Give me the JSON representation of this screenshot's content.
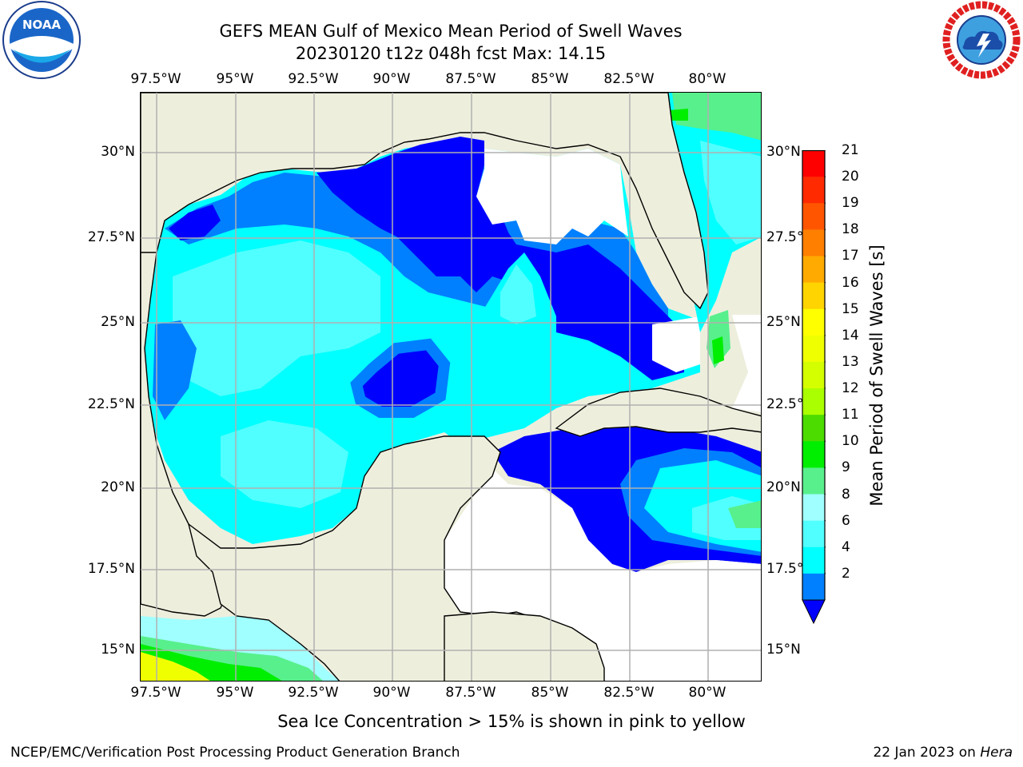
{
  "header": {
    "title_line1": "GEFS MEAN Gulf of Mexico Mean Period of Swell Waves",
    "title_line2": "20230120 t12z 048h fcst   Max: 14.15"
  },
  "logos": {
    "noaa": {
      "icon": "noaa-logo",
      "text": "NOAA",
      "ring_text": "NATIONAL OCEANIC AND ATMOSPHERIC ADMINISTRATION · U.S. DEPARTMENT OF COMMERCE"
    },
    "nws": {
      "icon": "nws-logo",
      "ring_text": "NATIONAL WEATHER SERVICE"
    }
  },
  "axes": {
    "lon_ticks": [
      "97.5°W",
      "95°W",
      "92.5°W",
      "90°W",
      "87.5°W",
      "85°W",
      "82.5°W",
      "80°W"
    ],
    "lat_ticks_left": [
      "30°N",
      "27.5°N",
      "25°N",
      "22.5°N",
      "20°N",
      "17.5°N",
      "15°N"
    ],
    "lat_ticks_right": [
      "30°N",
      "27.5°",
      "25°N",
      "22.5°",
      "20°N",
      "17.5°",
      "15°N"
    ]
  },
  "colorbar": {
    "label": "Mean Period of Swell Waves [s]",
    "ticks": [
      "21",
      "20",
      "19",
      "18",
      "17",
      "16",
      "15",
      "14",
      "13",
      "12",
      "11",
      "10",
      "9",
      "8",
      "6",
      "4",
      "2"
    ],
    "colors": [
      "#ff0000",
      "#ff2a00",
      "#ff5500",
      "#ff7f00",
      "#ffaa00",
      "#ffd400",
      "#ffff00",
      "#f0ff00",
      "#d4ff00",
      "#aaff00",
      "#4cdc00",
      "#00ee00",
      "#58f08c",
      "#a0ffff",
      "#50ffff",
      "#00ffff",
      "#0080ff"
    ],
    "arrow_color": "#0000ff"
  },
  "caption": "Sea Ice Concentration > 15% is shown in pink to yellow",
  "footer": {
    "left": "NCEP/EMC/Verification Post Processing Product Generation Branch",
    "right_prefix": "22 Jan 2023 on ",
    "right_host": "Hera"
  },
  "map_colors": {
    "land": "#eeeedd",
    "deep_blue": "#0000ff",
    "mid_blue": "#0080ff",
    "cyan": "#00ffff",
    "light_cyan": "#50ffff",
    "pale_cyan": "#a0ffff",
    "green": "#58f08c",
    "bright_green": "#00ee00",
    "yellow": "#f0ff00",
    "no_data": "#ffffff",
    "grid": "#b0b0b0"
  }
}
